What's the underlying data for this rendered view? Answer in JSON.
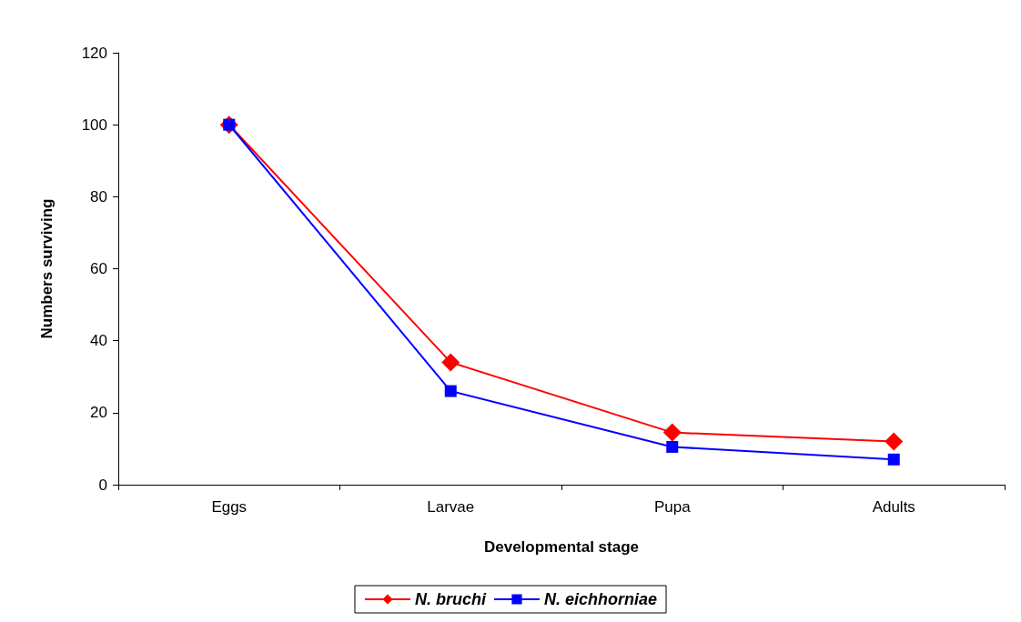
{
  "chart_data": {
    "type": "line",
    "xlabel": "Developmental stage",
    "ylabel": "Numbers surviving",
    "categories": [
      "Eggs",
      "Larvae",
      "Pupa",
      "Adults"
    ],
    "series": [
      {
        "name": "N. bruchi",
        "color": "#ff0000",
        "marker": "diamond",
        "values": [
          100,
          34,
          14.5,
          12
        ]
      },
      {
        "name": "N. eichhorniae",
        "color": "#0000ff",
        "marker": "square",
        "values": [
          100,
          26,
          10.5,
          7
        ]
      }
    ],
    "ylim": [
      0,
      120
    ],
    "yticks": [
      0,
      20,
      40,
      60,
      80,
      100,
      120
    ],
    "grid": false,
    "legend": "bottom"
  }
}
